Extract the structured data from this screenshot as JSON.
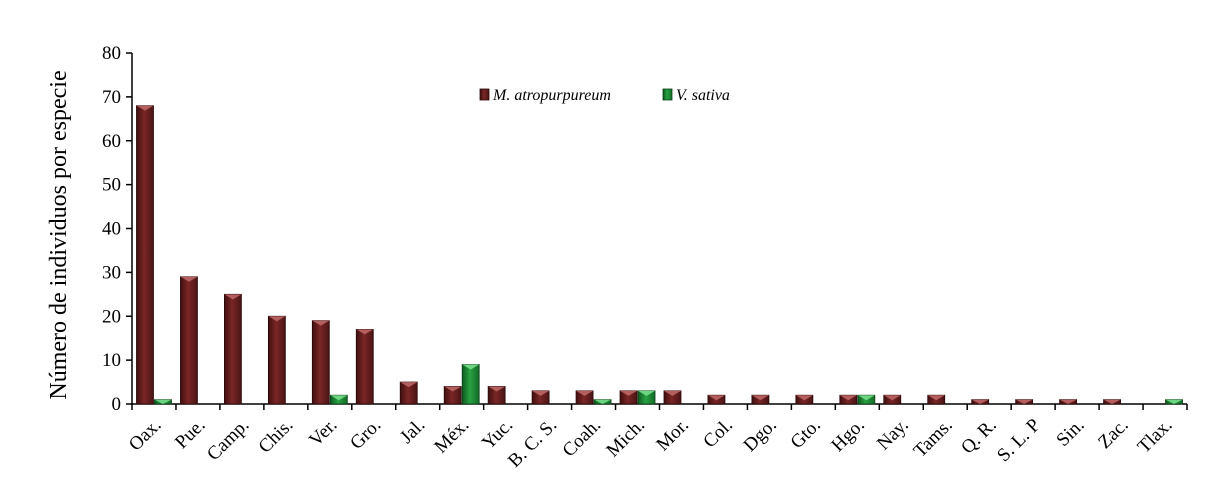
{
  "chart_data": {
    "type": "bar",
    "ylabel": "Número de individuos por especie",
    "xlabel": "",
    "ylim": [
      0,
      80
    ],
    "yticks": [
      0,
      10,
      20,
      30,
      40,
      50,
      60,
      70,
      80
    ],
    "grid": false,
    "legend_position": "top-center",
    "categories": [
      "Oax.",
      "Pue.",
      "Camp.",
      "Chis.",
      "Ver.",
      "Gro.",
      "Jal.",
      "Méx.",
      "Yuc.",
      "B. C. S.",
      "Coah.",
      "Mich.",
      "Mor.",
      "Col.",
      "Dgo.",
      "Gto.",
      "Hgo.",
      "Nay.",
      "Tams.",
      "Q. R.",
      "S. L. P",
      "Sin.",
      "Zac.",
      "Tlax."
    ],
    "series": [
      {
        "name": "M. atropurpureum",
        "color": "#6b1e1e",
        "values": [
          68,
          29,
          25,
          20,
          19,
          17,
          5,
          4,
          4,
          3,
          3,
          3,
          3,
          2,
          2,
          2,
          2,
          2,
          2,
          1,
          1,
          1,
          1,
          0
        ]
      },
      {
        "name": "V. sativa",
        "color": "#1f8a38",
        "values": [
          1,
          0,
          0,
          0,
          2,
          0,
          0,
          9,
          0,
          0,
          1,
          3,
          0,
          0,
          0,
          0,
          2,
          0,
          0,
          0,
          0,
          0,
          0,
          1
        ]
      }
    ]
  }
}
